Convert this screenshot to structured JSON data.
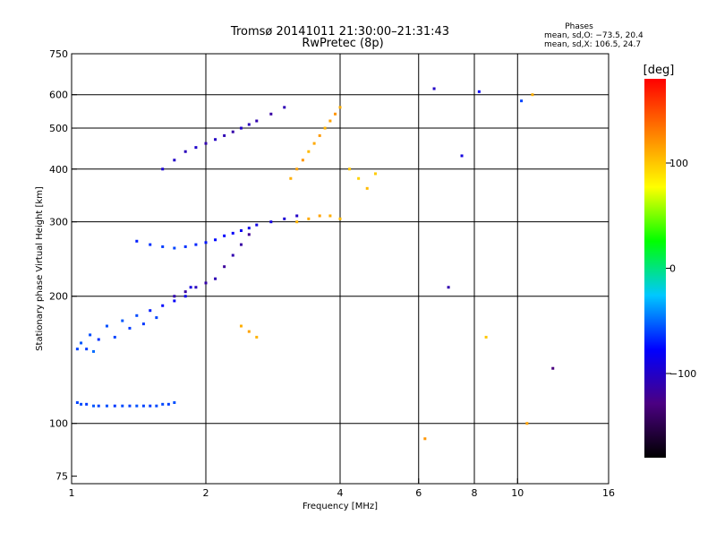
{
  "chart_data": {
    "type": "scatter",
    "title": "Tromsø 20141011 21:30:00–21:31:43",
    "subtitle": "RwPretec (8p)",
    "stats": {
      "heading": "Phases",
      "line1": "mean, sd,O: −73.5, 20.4",
      "line2": "mean, sd,X: 106.5, 24.7"
    },
    "xlabel": "Frequency [MHz]",
    "ylabel": "Stationary phase Virtual Height [km]",
    "x_scale": "log",
    "y_scale": "log",
    "xlim": [
      1,
      16
    ],
    "ylim": [
      72,
      750
    ],
    "x_ticks": [
      1,
      2,
      4,
      6,
      8,
      10,
      16
    ],
    "x_tick_labels": [
      "1",
      "2",
      "4",
      "6",
      "8",
      "10",
      "16"
    ],
    "y_ticks": [
      75,
      100,
      200,
      300,
      400,
      500,
      600,
      750
    ],
    "y_tick_labels": [
      "75",
      "100",
      "200",
      "300",
      "400",
      "500",
      "600",
      "750"
    ],
    "x_gridlines": [
      2,
      4,
      6,
      8,
      10
    ],
    "y_gridlines": [
      100,
      200,
      300,
      400,
      500,
      600
    ],
    "grid": true,
    "colorbar": {
      "unit": "[deg]",
      "range": [
        -180,
        180
      ],
      "ticks": [
        100,
        0,
        -100
      ],
      "tick_labels": [
        "100",
        "0",
        "−100"
      ],
      "colors": [
        "#000000",
        "#4b0082",
        "#0000ff",
        "#00c8ff",
        "#00ff00",
        "#ffff00",
        "#ff8000",
        "#ff0000"
      ]
    },
    "series": [
      {
        "x": [
          1.03,
          1.05,
          1.08,
          1.12,
          1.15,
          1.2,
          1.25,
          1.3,
          1.35,
          1.4,
          1.45,
          1.5,
          1.55,
          1.6,
          1.65,
          1.7
        ],
        "y": [
          112,
          111,
          111,
          110,
          110,
          110,
          110,
          110,
          110,
          110,
          110,
          110,
          110,
          111,
          111,
          112
        ],
        "phase": [
          -60,
          -58,
          -62,
          -55,
          -60,
          -57,
          -63,
          -58,
          -61,
          -56,
          -60,
          -62,
          -58,
          -59,
          -61,
          -57
        ]
      },
      {
        "x": [
          1.03,
          1.05,
          1.08,
          1.1,
          1.12,
          1.15,
          1.2,
          1.25,
          1.3,
          1.35,
          1.4,
          1.45,
          1.5,
          1.55,
          1.6,
          1.7,
          1.8,
          1.85
        ],
        "y": [
          150,
          155,
          150,
          162,
          148,
          158,
          170,
          160,
          175,
          168,
          180,
          172,
          185,
          178,
          190,
          195,
          200,
          210
        ],
        "phase": [
          -60,
          -55,
          -62,
          -58,
          -50,
          -65,
          -57,
          -60,
          -55,
          -62,
          -58,
          -63,
          -70,
          -60,
          -75,
          -80,
          -85,
          -90
        ]
      },
      {
        "x": [
          1.4,
          1.5,
          1.6,
          1.7,
          1.8,
          1.9,
          2.0,
          2.1,
          2.2,
          2.3,
          2.4,
          2.5,
          2.6,
          2.8,
          3.0,
          3.2
        ],
        "y": [
          270,
          265,
          262,
          260,
          262,
          265,
          268,
          272,
          278,
          282,
          286,
          290,
          295,
          300,
          305,
          310
        ],
        "phase": [
          -70,
          -65,
          -62,
          -60,
          -65,
          -68,
          -72,
          -75,
          -78,
          -80,
          -82,
          -85,
          -88,
          -90,
          -95,
          -100
        ]
      },
      {
        "x": [
          1.6,
          1.7,
          1.8,
          1.9,
          2.0,
          2.1,
          2.2,
          2.3,
          2.4,
          2.5,
          2.6,
          2.8,
          3.0
        ],
        "y": [
          400,
          420,
          440,
          450,
          460,
          470,
          480,
          490,
          500,
          510,
          520,
          540,
          560
        ],
        "phase": [
          -95,
          -100,
          -105,
          -98,
          -110,
          -102,
          -108,
          -112,
          -100,
          -105,
          -110,
          -115,
          -108
        ]
      },
      {
        "x": [
          1.7,
          1.8,
          1.9,
          2.0,
          2.1,
          2.2,
          2.3,
          2.4,
          2.5
        ],
        "y": [
          200,
          205,
          210,
          215,
          220,
          235,
          250,
          265,
          280
        ],
        "phase": [
          -110,
          -115,
          -105,
          -112,
          -108,
          -118,
          -110,
          -115,
          -120
        ]
      },
      {
        "x": [
          3.1,
          3.2,
          3.3,
          3.4,
          3.5,
          3.6,
          3.7,
          3.8,
          3.9,
          4.0,
          4.2,
          4.4,
          4.6,
          4.8
        ],
        "y": [
          380,
          400,
          420,
          440,
          460,
          480,
          500,
          520,
          540,
          560,
          400,
          380,
          360,
          390
        ],
        "phase": [
          110,
          115,
          120,
          105,
          112,
          118,
          108,
          115,
          120,
          110,
          100,
          95,
          105,
          98
        ]
      },
      {
        "x": [
          3.2,
          3.4,
          3.6,
          3.8,
          4.0
        ],
        "y": [
          300,
          305,
          310,
          310,
          305
        ],
        "phase": [
          108,
          112,
          115,
          110,
          105
        ]
      },
      {
        "x": [
          2.4,
          2.5,
          2.6
        ],
        "y": [
          170,
          165,
          160
        ],
        "phase": [
          110,
          115,
          108
        ]
      },
      {
        "x": [
          6.5,
          7.5,
          8.2,
          10.2,
          10.8,
          12.0,
          6.2,
          7.0,
          8.5,
          10.5
        ],
        "y": [
          620,
          430,
          610,
          580,
          600,
          135,
          92,
          210,
          160,
          100
        ],
        "phase": [
          -100,
          -90,
          -80,
          -60,
          110,
          -130,
          120,
          -110,
          100,
          115
        ]
      }
    ]
  }
}
